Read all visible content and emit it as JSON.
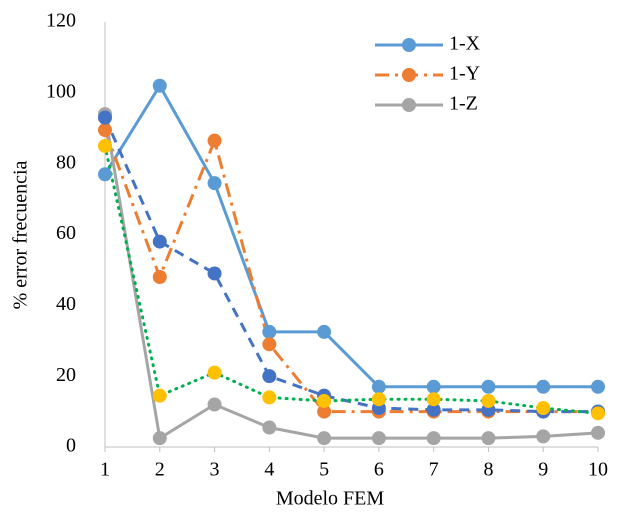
{
  "chart_data": {
    "type": "line",
    "x_label": "Modelo FEM",
    "y_label": "% error frecuencia",
    "x": [
      1,
      2,
      3,
      4,
      5,
      6,
      7,
      8,
      9,
      10
    ],
    "xlim": [
      1,
      10
    ],
    "xticks": [
      1,
      2,
      3,
      4,
      5,
      6,
      7,
      8,
      9,
      10
    ],
    "ylim": [
      0,
      120
    ],
    "yticks": [
      0,
      20,
      40,
      60,
      80,
      100,
      120
    ],
    "grid": false,
    "legend": "top-right",
    "series": [
      {
        "name": "1-X",
        "color": "#5b9bd5",
        "line_style": "solid",
        "values": [
          77,
          102,
          74.5,
          32.5,
          32.5,
          17,
          17,
          17,
          17,
          17
        ]
      },
      {
        "name": "1-Y",
        "color": "#ed7d31",
        "line_style": "dashdot",
        "values": [
          89.5,
          48,
          86.5,
          29,
          10,
          10,
          10,
          10,
          10,
          10
        ]
      },
      {
        "name": "1-Z",
        "color": "#a5a5a5",
        "line_style": "solid",
        "values": [
          94,
          2.5,
          12,
          5.5,
          2.5,
          2.5,
          2.5,
          2.5,
          3,
          4
        ]
      },
      {
        "color": "#4472c4",
        "line_style": "dashed",
        "values": [
          93,
          58,
          49,
          20,
          14.5,
          11,
          10.5,
          10.5,
          10,
          10
        ]
      },
      {
        "color": "#ffc000",
        "line_color": "#00b050",
        "line_style": "dotted",
        "values": [
          85,
          14.5,
          21,
          14,
          13,
          13.5,
          13.5,
          13,
          11,
          9.5
        ]
      }
    ]
  }
}
